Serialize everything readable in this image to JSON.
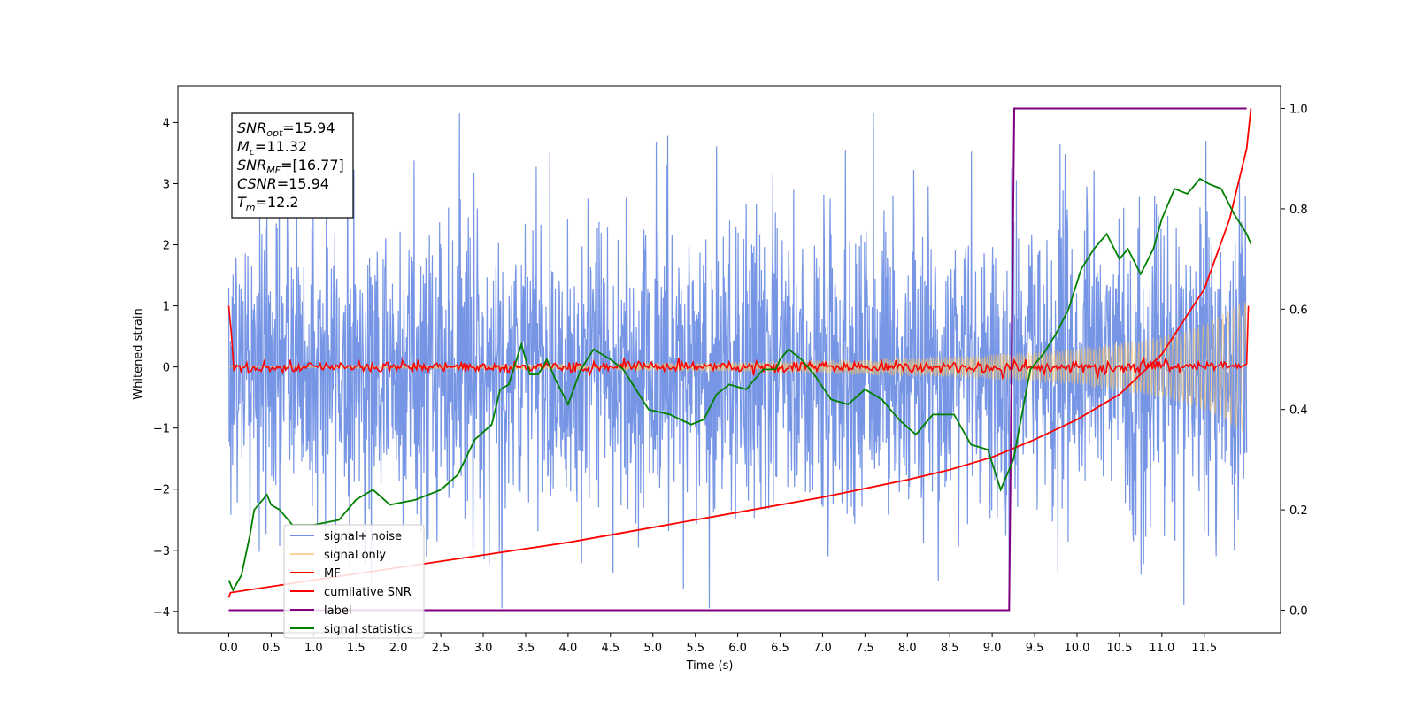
{
  "chart_data": {
    "type": "line",
    "title": "",
    "xlabel": "Time (s)",
    "ylabel": "Whitened strain",
    "xlim": [
      -0.6,
      12.4
    ],
    "ylim": [
      -4.35,
      4.6
    ],
    "y2lim": [
      -0.045,
      1.045
    ],
    "x_ticks": [
      "0.0",
      "0.5",
      "1.0",
      "1.5",
      "2.0",
      "2.5",
      "3.0",
      "3.5",
      "4.0",
      "4.5",
      "5.0",
      "5.5",
      "6.0",
      "6.5",
      "7.0",
      "7.5",
      "8.0",
      "8.5",
      "9.0",
      "9.5",
      "10.0",
      "10.5",
      "11.0",
      "11.5"
    ],
    "y_ticks": [
      "4",
      "3",
      "2",
      "1",
      "0",
      "−1",
      "−2",
      "−3",
      "−4"
    ],
    "y2_ticks": [
      "1.0",
      "0.8",
      "0.6",
      "0.4",
      "0.2",
      "0.0"
    ],
    "grid": false,
    "legend_position": "lower-left",
    "series": [
      {
        "name": "signal+ noise",
        "axis": "left",
        "color": "#6f8fe4",
        "description": "whitened noise, approx. gaussian, std ~1.3, spikes up to ~4.1 and down to ~-3.9, spanning 0 to 12.0 s",
        "x_range": [
          0.0,
          12.0
        ],
        "envelope": [
          [
            0.0,
            -1.6,
            1.7
          ],
          [
            3.2,
            -3.95,
            4.1
          ],
          [
            9.5,
            -3.9,
            4.1
          ],
          [
            12.0,
            -3.0,
            3.5
          ]
        ]
      },
      {
        "name": "signal only",
        "axis": "left",
        "color": "#f5c36a",
        "description": "chirp oscillation with growing amplitude",
        "amplitude_points": [
          [
            0.0,
            0.0
          ],
          [
            6.0,
            0.08
          ],
          [
            8.0,
            0.15
          ],
          [
            9.0,
            0.2
          ],
          [
            10.0,
            0.3
          ],
          [
            11.0,
            0.5
          ],
          [
            11.5,
            0.7
          ],
          [
            12.0,
            1.1
          ]
        ]
      },
      {
        "name": "MF",
        "axis": "left",
        "color": "#ff0000",
        "description": "matched filter output, starts at 1.0 then noisy around 0 (amplitude ~0.1), rises to 1.0 at the end",
        "points": [
          [
            0.0,
            1.0
          ],
          [
            0.05,
            -0.05
          ],
          [
            12.0,
            0.0
          ],
          [
            12.0,
            1.0
          ]
        ]
      },
      {
        "name": "cumilative SNR",
        "axis": "right",
        "color": "#ff0000",
        "points": [
          [
            0.0,
            0.025
          ],
          [
            0.02,
            0.035
          ],
          [
            1.0,
            0.06
          ],
          [
            2.0,
            0.085
          ],
          [
            3.0,
            0.11
          ],
          [
            4.0,
            0.135
          ],
          [
            5.0,
            0.165
          ],
          [
            6.0,
            0.195
          ],
          [
            7.0,
            0.225
          ],
          [
            8.0,
            0.26
          ],
          [
            8.5,
            0.28
          ],
          [
            9.0,
            0.305
          ],
          [
            9.5,
            0.34
          ],
          [
            10.0,
            0.38
          ],
          [
            10.5,
            0.43
          ],
          [
            11.0,
            0.51
          ],
          [
            11.5,
            0.64
          ],
          [
            11.8,
            0.78
          ],
          [
            12.0,
            0.92
          ],
          [
            12.05,
            1.0
          ]
        ]
      },
      {
        "name": "label",
        "axis": "right",
        "color": "#800080",
        "points": [
          [
            0.0,
            0.0
          ],
          [
            9.2,
            0.0
          ],
          [
            9.26,
            1.0
          ],
          [
            12.0,
            1.0
          ]
        ]
      },
      {
        "name": "signal statistics",
        "axis": "right",
        "color": "#008000",
        "points": [
          [
            0.0,
            0.06
          ],
          [
            0.05,
            0.04
          ],
          [
            0.15,
            0.07
          ],
          [
            0.25,
            0.15
          ],
          [
            0.3,
            0.2
          ],
          [
            0.45,
            0.23
          ],
          [
            0.5,
            0.21
          ],
          [
            0.6,
            0.2
          ],
          [
            0.75,
            0.17
          ],
          [
            1.0,
            0.17
          ],
          [
            1.3,
            0.18
          ],
          [
            1.5,
            0.22
          ],
          [
            1.7,
            0.24
          ],
          [
            1.9,
            0.21
          ],
          [
            2.2,
            0.22
          ],
          [
            2.5,
            0.24
          ],
          [
            2.7,
            0.27
          ],
          [
            2.9,
            0.34
          ],
          [
            3.1,
            0.37
          ],
          [
            3.2,
            0.44
          ],
          [
            3.3,
            0.45
          ],
          [
            3.45,
            0.53
          ],
          [
            3.55,
            0.47
          ],
          [
            3.65,
            0.47
          ],
          [
            3.75,
            0.5
          ],
          [
            3.85,
            0.46
          ],
          [
            4.0,
            0.41
          ],
          [
            4.15,
            0.48
          ],
          [
            4.3,
            0.52
          ],
          [
            4.5,
            0.5
          ],
          [
            4.65,
            0.48
          ],
          [
            4.8,
            0.44
          ],
          [
            4.95,
            0.4
          ],
          [
            5.2,
            0.39
          ],
          [
            5.45,
            0.37
          ],
          [
            5.6,
            0.38
          ],
          [
            5.75,
            0.43
          ],
          [
            5.9,
            0.45
          ],
          [
            6.1,
            0.44
          ],
          [
            6.3,
            0.48
          ],
          [
            6.45,
            0.48
          ],
          [
            6.5,
            0.5
          ],
          [
            6.6,
            0.52
          ],
          [
            6.75,
            0.5
          ],
          [
            6.9,
            0.47
          ],
          [
            7.1,
            0.42
          ],
          [
            7.3,
            0.41
          ],
          [
            7.5,
            0.44
          ],
          [
            7.7,
            0.42
          ],
          [
            7.9,
            0.38
          ],
          [
            8.1,
            0.35
          ],
          [
            8.3,
            0.39
          ],
          [
            8.55,
            0.39
          ],
          [
            8.75,
            0.33
          ],
          [
            8.95,
            0.32
          ],
          [
            9.1,
            0.24
          ],
          [
            9.25,
            0.3
          ],
          [
            9.45,
            0.48
          ],
          [
            9.6,
            0.51
          ],
          [
            9.75,
            0.55
          ],
          [
            9.9,
            0.6
          ],
          [
            10.05,
            0.68
          ],
          [
            10.2,
            0.72
          ],
          [
            10.35,
            0.75
          ],
          [
            10.5,
            0.7
          ],
          [
            10.6,
            0.72
          ],
          [
            10.75,
            0.67
          ],
          [
            10.9,
            0.72
          ],
          [
            11.0,
            0.78
          ],
          [
            11.15,
            0.84
          ],
          [
            11.3,
            0.83
          ],
          [
            11.45,
            0.86
          ],
          [
            11.55,
            0.85
          ],
          [
            11.7,
            0.84
          ],
          [
            11.85,
            0.79
          ],
          [
            12.0,
            0.75
          ],
          [
            12.05,
            0.73
          ]
        ]
      }
    ],
    "annotation_box": [
      {
        "label": "SNR",
        "sub": "opt",
        "value": "=15.94"
      },
      {
        "label": "M",
        "sub": "c",
        "value": "=11.32"
      },
      {
        "label": "SNR",
        "sub": "MF",
        "value": "=[16.77]"
      },
      {
        "label": "CSNR",
        "sub": "",
        "value": "=15.94"
      },
      {
        "label": "T",
        "sub": "m",
        "value": "=12.2"
      }
    ]
  }
}
